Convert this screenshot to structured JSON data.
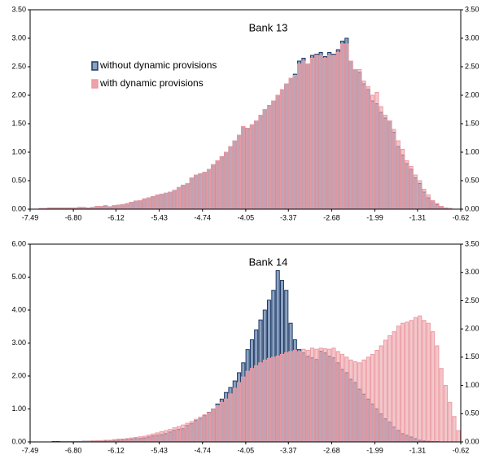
{
  "chart_data": [
    {
      "type": "histogram",
      "title": "Bank 13",
      "legend": "upper left",
      "bins": [
        -7.49,
        -7.421,
        -7.353,
        -7.284,
        -7.215,
        -7.147,
        -7.078,
        -7.009,
        -6.94,
        -6.872,
        -6.803,
        -6.734,
        -6.666,
        -6.597,
        -6.528,
        -6.46,
        -6.391,
        -6.322,
        -6.253,
        -6.185,
        -6.116,
        -6.047,
        -5.979,
        -5.91,
        -5.841,
        -5.773,
        -5.704,
        -5.635,
        -5.566,
        -5.498,
        -5.429,
        -5.36,
        -5.292,
        -5.223,
        -5.154,
        -5.086,
        -5.017,
        -4.948,
        -4.879,
        -4.811,
        -4.742,
        -4.673,
        -4.605,
        -4.536,
        -4.467,
        -4.399,
        -4.33,
        -4.261,
        -4.192,
        -4.124,
        -4.055,
        -3.986,
        -3.918,
        -3.849,
        -3.78,
        -3.712,
        -3.643,
        -3.574,
        -3.505,
        -3.437,
        -3.368,
        -3.299,
        -3.231,
        -3.162,
        -3.093,
        -3.025,
        -2.956,
        -2.887,
        -2.818,
        -2.75,
        -2.681,
        -2.612,
        -2.544,
        -2.475,
        -2.406,
        -2.338,
        -2.269,
        -2.2,
        -2.131,
        -2.063,
        -1.994,
        -1.925,
        -1.857,
        -1.788,
        -1.719,
        -1.651,
        -1.582,
        -1.513,
        -1.444,
        -1.376,
        -1.307,
        -1.238,
        -1.17,
        -1.101,
        -1.032,
        -0.964,
        -0.895,
        -0.826,
        -0.757,
        -0.689,
        -0.62
      ],
      "series": [
        {
          "name": "without dynamic provisions",
          "color": "#8aa2c0",
          "edge": "#1f3864",
          "values": [
            0,
            0,
            0.01,
            0.01,
            0.02,
            0.02,
            0.02,
            0.02,
            0.02,
            0.02,
            0.02,
            0.03,
            0.03,
            0.02,
            0.03,
            0.05,
            0.05,
            0.06,
            0.04,
            0.06,
            0.07,
            0.08,
            0.1,
            0.12,
            0.14,
            0.15,
            0.18,
            0.2,
            0.22,
            0.25,
            0.26,
            0.28,
            0.3,
            0.33,
            0.38,
            0.42,
            0.45,
            0.55,
            0.6,
            0.62,
            0.65,
            0.7,
            0.78,
            0.85,
            0.92,
            1.0,
            1.1,
            1.2,
            1.3,
            1.45,
            1.42,
            1.48,
            1.55,
            1.65,
            1.75,
            1.82,
            1.9,
            2.0,
            2.1,
            2.2,
            2.3,
            2.37,
            2.6,
            2.65,
            2.55,
            2.7,
            2.72,
            2.75,
            2.68,
            2.75,
            2.72,
            2.8,
            2.95,
            3.0,
            2.6,
            2.45,
            2.4,
            2.2,
            2.1,
            1.9,
            1.85,
            1.7,
            1.6,
            1.55,
            1.35,
            1.1,
            0.95,
            0.8,
            0.7,
            0.55,
            0.45,
            0.3,
            0.2,
            0.15,
            0.08,
            0.05,
            0.02,
            0.01,
            0,
            0
          ]
        },
        {
          "name": "with dynamic provisions",
          "color": "#e8a4aa",
          "edge": "#ef9aa2",
          "values": [
            0,
            0,
            0.01,
            0.01,
            0.02,
            0.02,
            0.02,
            0.02,
            0.02,
            0.02,
            0.02,
            0.03,
            0.03,
            0.02,
            0.03,
            0.05,
            0.05,
            0.06,
            0.04,
            0.06,
            0.07,
            0.08,
            0.1,
            0.12,
            0.14,
            0.15,
            0.18,
            0.2,
            0.22,
            0.25,
            0.26,
            0.28,
            0.3,
            0.33,
            0.38,
            0.42,
            0.45,
            0.55,
            0.6,
            0.62,
            0.65,
            0.7,
            0.78,
            0.85,
            0.92,
            1.0,
            1.1,
            1.2,
            1.3,
            1.45,
            1.42,
            1.48,
            1.55,
            1.65,
            1.75,
            1.82,
            1.9,
            2.0,
            2.1,
            2.2,
            2.3,
            2.35,
            2.55,
            2.6,
            2.55,
            2.65,
            2.7,
            2.7,
            2.65,
            2.7,
            2.7,
            2.75,
            2.9,
            2.9,
            2.6,
            2.45,
            2.45,
            2.25,
            2.15,
            2.0,
            2.05,
            1.8,
            1.65,
            1.55,
            1.4,
            1.2,
            1.05,
            0.85,
            0.75,
            0.6,
            0.5,
            0.35,
            0.25,
            0.15,
            0.1,
            0.05,
            0.02,
            0.01,
            0,
            0
          ]
        }
      ],
      "xlim": [
        -7.49,
        -0.62
      ],
      "xticks": [
        -7.49,
        {
          "value": -6.8,
          "label": "-6.80"
        },
        -6.12,
        -5.43,
        -4.74,
        -4.05,
        -3.37,
        -2.68,
        -1.99,
        -1.31,
        -0.62
      ],
      "ylim": [
        0,
        3.5
      ],
      "yticks": [
        {
          "value": 0,
          "label": "0.00"
        },
        {
          "value": 0.5,
          "label": "0.50"
        },
        {
          "value": 1,
          "label": "1.00"
        },
        {
          "value": 1.5,
          "label": "1.50"
        },
        {
          "value": 2,
          "label": "2.00"
        },
        {
          "value": 2.5,
          "label": "2.50"
        },
        {
          "value": 3,
          "label": "3.00"
        },
        {
          "value": 3.5,
          "label": "3.50"
        }
      ],
      "y2lim": [
        0,
        3.5
      ],
      "y2ticks": [
        {
          "value": 0,
          "label": "0.00"
        },
        {
          "value": 0.5,
          "label": "0.50"
        },
        {
          "value": 1,
          "label": "1.00"
        },
        {
          "value": 1.5,
          "label": "1.50"
        },
        {
          "value": 2,
          "label": "2.00"
        },
        {
          "value": 2.5,
          "label": "2.50"
        },
        {
          "value": 3,
          "label": "3.00"
        },
        {
          "value": 3.5,
          "label": "3.50"
        }
      ]
    },
    {
      "type": "histogram",
      "title": "Bank 14",
      "bins": [
        -7.49,
        -7.421,
        -7.353,
        -7.284,
        -7.215,
        -7.147,
        -7.078,
        -7.009,
        -6.94,
        -6.872,
        -6.803,
        -6.734,
        -6.666,
        -6.597,
        -6.528,
        -6.46,
        -6.391,
        -6.322,
        -6.253,
        -6.185,
        -6.116,
        -6.047,
        -5.979,
        -5.91,
        -5.841,
        -5.773,
        -5.704,
        -5.635,
        -5.566,
        -5.498,
        -5.429,
        -5.36,
        -5.292,
        -5.223,
        -5.154,
        -5.086,
        -5.017,
        -4.948,
        -4.879,
        -4.811,
        -4.742,
        -4.673,
        -4.605,
        -4.536,
        -4.467,
        -4.399,
        -4.33,
        -4.261,
        -4.192,
        -4.124,
        -4.055,
        -3.986,
        -3.918,
        -3.849,
        -3.78,
        -3.712,
        -3.643,
        -3.574,
        -3.505,
        -3.437,
        -3.368,
        -3.299,
        -3.231,
        -3.162,
        -3.093,
        -3.025,
        -2.956,
        -2.887,
        -2.818,
        -2.75,
        -2.681,
        -2.612,
        -2.544,
        -2.475,
        -2.406,
        -2.338,
        -2.269,
        -2.2,
        -2.131,
        -2.063,
        -1.994,
        -1.925,
        -1.857,
        -1.788,
        -1.719,
        -1.651,
        -1.582,
        -1.513,
        -1.444,
        -1.376,
        -1.307,
        -1.238,
        -1.17,
        -1.101,
        -1.032,
        -0.964,
        -0.895,
        -0.826,
        -0.757,
        -0.689,
        -0.62
      ],
      "series": [
        {
          "color": "#8aa2c0",
          "edge": "#1f3864",
          "values": [
            0,
            0,
            0,
            0,
            0,
            0.01,
            0.01,
            0.01,
            0.01,
            0.01,
            0.01,
            0.01,
            0.02,
            0.02,
            0.02,
            0.03,
            0.03,
            0.03,
            0.04,
            0.05,
            0.05,
            0.06,
            0.07,
            0.08,
            0.1,
            0.1,
            0.12,
            0.15,
            0.18,
            0.2,
            0.22,
            0.25,
            0.3,
            0.35,
            0.38,
            0.4,
            0.5,
            0.55,
            0.65,
            0.7,
            0.8,
            0.9,
            1.0,
            1.15,
            1.3,
            1.5,
            1.65,
            1.85,
            2.1,
            2.4,
            2.8,
            3.1,
            3.4,
            3.7,
            4.0,
            4.3,
            4.6,
            5.2,
            4.9,
            4.6,
            3.6,
            3.1,
            2.8,
            2.7,
            2.6,
            2.55,
            2.5,
            2.75,
            2.7,
            2.6,
            2.55,
            2.4,
            2.2,
            2.1,
            1.9,
            1.8,
            1.6,
            1.45,
            1.3,
            1.15,
            1.0,
            0.85,
            0.7,
            0.6,
            0.45,
            0.35,
            0.25,
            0.2,
            0.15,
            0.1,
            0.05,
            0.03,
            0.02,
            0.01,
            0.01,
            0,
            0,
            0,
            0,
            0
          ]
        },
        {
          "color": "#e8a4aa",
          "edge": "#ef9aa2",
          "axis": "y2",
          "values": [
            0,
            0,
            0,
            0,
            0,
            0,
            0,
            0.01,
            0.01,
            0.01,
            0.01,
            0.01,
            0.01,
            0.01,
            0.02,
            0.02,
            0.02,
            0.03,
            0.03,
            0.04,
            0.05,
            0.05,
            0.06,
            0.07,
            0.08,
            0.09,
            0.1,
            0.12,
            0.14,
            0.16,
            0.18,
            0.2,
            0.22,
            0.25,
            0.27,
            0.3,
            0.33,
            0.36,
            0.4,
            0.44,
            0.48,
            0.52,
            0.58,
            0.64,
            0.7,
            0.76,
            0.85,
            0.95,
            1.05,
            1.15,
            1.25,
            1.3,
            1.35,
            1.4,
            1.45,
            1.48,
            1.5,
            1.52,
            1.55,
            1.58,
            1.6,
            1.62,
            1.6,
            1.64,
            1.62,
            1.66,
            1.64,
            1.66,
            1.65,
            1.64,
            1.66,
            1.6,
            1.55,
            1.5,
            1.45,
            1.42,
            1.4,
            1.45,
            1.5,
            1.55,
            1.62,
            1.7,
            1.8,
            1.88,
            1.95,
            2.05,
            2.1,
            2.12,
            2.15,
            2.2,
            2.23,
            2.15,
            2.1,
            1.95,
            1.7,
            1.3,
            1.0,
            0.7,
            0.45,
            0.2
          ]
        }
      ],
      "xlim": [
        -7.49,
        -0.62
      ],
      "xticks": [
        -7.49,
        {
          "value": -6.8,
          "label": "-6.80"
        },
        -6.12,
        -5.43,
        -4.74,
        -4.05,
        -3.37,
        -2.68,
        -1.99,
        -1.31,
        -0.62
      ],
      "ylim": [
        0,
        6
      ],
      "yticks": [
        {
          "value": 0,
          "label": "0.00"
        },
        {
          "value": 1,
          "label": "1.00"
        },
        {
          "value": 2,
          "label": "2.00"
        },
        {
          "value": 3,
          "label": "3.00"
        },
        {
          "value": 4,
          "label": "4.00"
        },
        {
          "value": 5,
          "label": "5.00"
        },
        {
          "value": 6,
          "label": "6.00"
        }
      ],
      "y2lim": [
        0,
        3.5
      ],
      "y2ticks": [
        {
          "value": 0,
          "label": "0.00"
        },
        {
          "value": 0.5,
          "label": "0.50"
        },
        {
          "value": 1,
          "label": "1.00"
        },
        {
          "value": 1.5,
          "label": "1.50"
        },
        {
          "value": 2,
          "label": "2.00"
        },
        {
          "value": 2.5,
          "label": "2.50"
        },
        {
          "value": 3,
          "label": "3.00"
        },
        {
          "value": 3.5,
          "label": "3.50"
        }
      ]
    }
  ]
}
